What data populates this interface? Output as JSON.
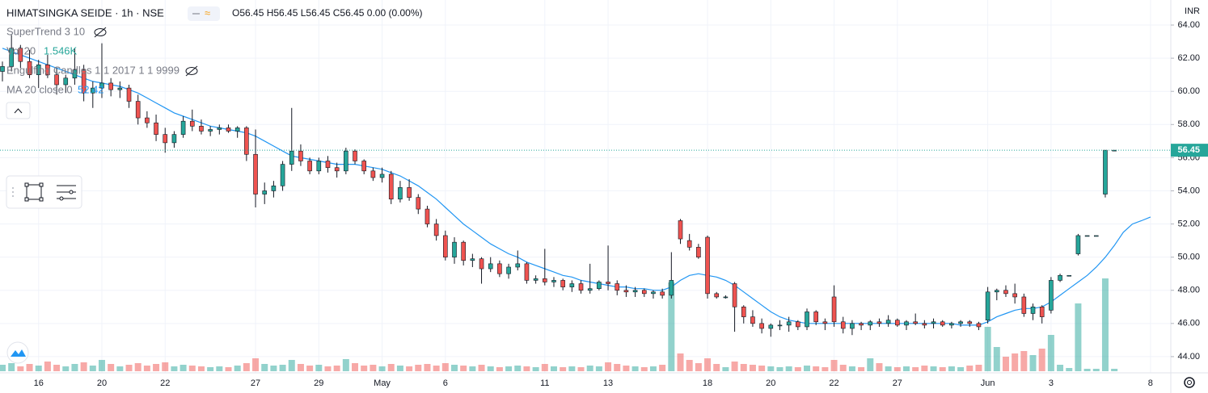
{
  "chart_data": {
    "type": "candlestick",
    "title": "HIMATSINGKA SEIDE · 1h · NSE",
    "ohlc_text": "O56.45 H56.45 L56.45 C56.45 0.00 (0.00%)",
    "currency": "INR",
    "indicators": [
      {
        "name": "SuperTrend 3 10"
      },
      {
        "name": "Vol 20",
        "value": "1.546K"
      },
      {
        "name": "Engulfing Candles 1 1 2017 1 1 9999"
      },
      {
        "name": "MA 20 close 0",
        "value": "52.42"
      }
    ],
    "up_color": "#26a69a",
    "down_color": "#ef5350",
    "volume_up_color": "rgba(38,166,154,0.5)",
    "volume_down_color": "rgba(239,83,80,0.5)",
    "ma_color": "#2196f3",
    "grid": true,
    "ylim": [
      43.12,
      65.51
    ],
    "yticks": [
      {
        "value": 44,
        "label": "44.00"
      },
      {
        "value": 46,
        "label": "46.00"
      },
      {
        "value": 48,
        "label": "48.00"
      },
      {
        "value": 50,
        "label": "50.00"
      },
      {
        "value": 52,
        "label": "52.00"
      },
      {
        "value": 54,
        "label": "54.00"
      },
      {
        "value": 56,
        "label": "56.00"
      },
      {
        "value": 58,
        "label": "58.00"
      },
      {
        "value": 60,
        "label": "60.00"
      },
      {
        "value": 62,
        "label": "62.00"
      },
      {
        "value": 64,
        "label": "64.00"
      }
    ],
    "last_price": {
      "value": 56.45,
      "label": "56.45"
    },
    "categories": [
      null,
      null,
      null,
      null,
      "16",
      null,
      null,
      null,
      null,
      null,
      null,
      "20",
      null,
      null,
      null,
      null,
      null,
      null,
      "22",
      null,
      null,
      null,
      null,
      null,
      null,
      null,
      null,
      null,
      "27",
      null,
      null,
      null,
      null,
      null,
      null,
      "29",
      null,
      null,
      null,
      null,
      null,
      null,
      "May",
      null,
      null,
      null,
      null,
      null,
      null,
      "6",
      null,
      null,
      null,
      null,
      null,
      null,
      null,
      null,
      null,
      null,
      "11",
      null,
      null,
      null,
      null,
      null,
      null,
      "13",
      null,
      null,
      null,
      null,
      null,
      null,
      null,
      null,
      null,
      null,
      "18",
      null,
      null,
      null,
      null,
      null,
      null,
      "20",
      null,
      null,
      null,
      null,
      null,
      null,
      "22",
      null,
      null,
      null,
      null,
      null,
      null,
      "27",
      null,
      null,
      null,
      null,
      null,
      null,
      null,
      null,
      null,
      "Jun",
      null,
      null,
      null,
      null,
      null,
      null,
      "3",
      null,
      null,
      null,
      null,
      null,
      null,
      null,
      null,
      null,
      null,
      "8"
    ],
    "candles": [
      [
        61.2,
        61.8,
        60.6,
        61.5,
        8
      ],
      [
        61.5,
        63.4,
        61.2,
        62.6,
        10
      ],
      [
        62.6,
        62.8,
        61.4,
        61.8,
        6
      ],
      [
        61.8,
        62.5,
        60.8,
        61.0,
        9
      ],
      [
        61.0,
        61.9,
        60.2,
        61.6,
        7
      ],
      [
        61.6,
        62.2,
        60.8,
        61.0,
        12
      ],
      [
        61.0,
        61.4,
        59.8,
        60.4,
        8
      ],
      [
        60.4,
        61.0,
        59.9,
        60.8,
        6
      ],
      [
        60.8,
        62.6,
        60.4,
        61.3,
        9
      ],
      [
        61.3,
        61.6,
        59.4,
        59.9,
        11
      ],
      [
        59.9,
        60.6,
        59.0,
        60.2,
        7
      ],
      [
        60.2,
        62.9,
        59.6,
        60.5,
        14
      ],
      [
        60.5,
        60.8,
        59.7,
        60.1,
        9
      ],
      [
        60.1,
        60.6,
        59.6,
        60.2,
        6
      ],
      [
        60.2,
        60.4,
        59.0,
        59.4,
        8
      ],
      [
        59.4,
        59.8,
        58.0,
        58.4,
        10
      ],
      [
        58.4,
        58.8,
        57.8,
        58.1,
        7
      ],
      [
        58.1,
        58.6,
        57.0,
        57.4,
        9
      ],
      [
        57.4,
        57.8,
        56.3,
        56.9,
        11
      ],
      [
        56.9,
        57.6,
        56.6,
        57.4,
        6
      ],
      [
        57.4,
        58.5,
        57.2,
        58.2,
        8
      ],
      [
        58.2,
        58.9,
        57.6,
        57.9,
        7
      ],
      [
        57.9,
        58.3,
        57.4,
        57.6,
        6
      ],
      [
        57.6,
        57.9,
        57.3,
        57.7,
        5
      ],
      [
        57.7,
        58.0,
        57.4,
        57.8,
        6
      ],
      [
        57.8,
        58.0,
        57.5,
        57.6,
        5
      ],
      [
        57.6,
        57.9,
        57.2,
        57.8,
        7
      ],
      [
        57.8,
        57.9,
        55.8,
        56.2,
        10
      ],
      [
        56.2,
        57.7,
        53.0,
        53.8,
        16
      ],
      [
        53.8,
        54.5,
        53.2,
        54.0,
        9
      ],
      [
        54.0,
        54.6,
        53.6,
        54.3,
        7
      ],
      [
        54.3,
        55.8,
        54.0,
        55.6,
        8
      ],
      [
        55.6,
        59.0,
        55.2,
        56.4,
        14
      ],
      [
        56.4,
        56.8,
        55.5,
        55.8,
        9
      ],
      [
        55.8,
        56.0,
        55.0,
        55.2,
        7
      ],
      [
        55.2,
        56.0,
        55.0,
        55.8,
        8
      ],
      [
        55.8,
        56.1,
        55.1,
        55.4,
        6
      ],
      [
        55.4,
        55.7,
        54.8,
        55.2,
        7
      ],
      [
        55.2,
        56.6,
        55.0,
        56.4,
        15
      ],
      [
        56.4,
        56.5,
        55.6,
        55.8,
        10
      ],
      [
        55.8,
        55.9,
        55.0,
        55.2,
        7
      ],
      [
        55.2,
        55.4,
        54.6,
        54.8,
        8
      ],
      [
        54.8,
        55.4,
        54.5,
        55.0,
        6
      ],
      [
        55.0,
        55.2,
        53.2,
        53.5,
        9
      ],
      [
        53.5,
        54.6,
        53.3,
        54.2,
        7
      ],
      [
        54.2,
        54.7,
        53.4,
        53.6,
        6
      ],
      [
        53.6,
        53.8,
        52.6,
        52.9,
        8
      ],
      [
        52.9,
        53.1,
        51.8,
        52.0,
        9
      ],
      [
        52.0,
        52.3,
        51.0,
        51.3,
        7
      ],
      [
        51.3,
        51.6,
        49.8,
        50.0,
        10
      ],
      [
        50.0,
        51.2,
        49.6,
        50.9,
        8
      ],
      [
        50.9,
        51.0,
        49.5,
        49.8,
        7
      ],
      [
        49.8,
        50.2,
        49.4,
        49.9,
        6
      ],
      [
        49.9,
        50.0,
        48.4,
        49.3,
        8
      ],
      [
        49.3,
        50.0,
        49.1,
        49.6,
        6
      ],
      [
        49.6,
        49.8,
        48.8,
        49.0,
        5
      ],
      [
        49.0,
        49.6,
        48.7,
        49.4,
        6
      ],
      [
        49.4,
        50.4,
        49.2,
        49.6,
        7
      ],
      [
        49.6,
        49.7,
        48.4,
        48.6,
        6
      ],
      [
        48.6,
        48.9,
        48.4,
        48.7,
        5
      ],
      [
        48.7,
        50.5,
        48.3,
        48.5,
        9
      ],
      [
        48.5,
        48.8,
        48.2,
        48.6,
        6
      ],
      [
        48.6,
        48.7,
        48.0,
        48.2,
        5
      ],
      [
        48.2,
        48.6,
        47.9,
        48.4,
        6
      ],
      [
        48.4,
        48.6,
        47.8,
        48.0,
        5
      ],
      [
        48.0,
        49.6,
        47.8,
        48.1,
        7
      ],
      [
        48.1,
        48.6,
        48.0,
        48.5,
        6
      ],
      [
        48.5,
        50.7,
        48.0,
        48.4,
        11
      ],
      [
        48.4,
        48.6,
        47.7,
        48.0,
        9
      ],
      [
        48.0,
        48.3,
        47.6,
        47.9,
        7
      ],
      [
        47.9,
        48.2,
        47.6,
        48.0,
        6
      ],
      [
        48.0,
        48.1,
        47.6,
        47.8,
        5
      ],
      [
        47.8,
        48.0,
        47.5,
        47.9,
        6
      ],
      [
        47.9,
        48.1,
        47.5,
        47.7,
        8
      ],
      [
        47.7,
        50.3,
        47.5,
        48.6,
        110
      ],
      [
        52.2,
        52.3,
        50.8,
        51.1,
        22
      ],
      [
        51.0,
        51.4,
        50.4,
        50.6,
        14
      ],
      [
        50.6,
        50.8,
        49.9,
        50.0,
        10
      ],
      [
        51.2,
        51.3,
        47.5,
        47.8,
        16
      ],
      [
        47.8,
        47.9,
        47.5,
        47.6,
        9
      ],
      [
        47.6,
        47.7,
        47.5,
        47.6,
        5
      ],
      [
        48.4,
        48.5,
        45.5,
        47.0,
        12
      ],
      [
        47.0,
        47.1,
        46.0,
        46.4,
        9
      ],
      [
        46.4,
        46.8,
        45.8,
        46.0,
        8
      ],
      [
        46.0,
        46.3,
        45.4,
        45.7,
        7
      ],
      [
        45.7,
        46.0,
        45.2,
        45.9,
        6
      ],
      [
        45.9,
        46.2,
        45.6,
        45.9,
        5
      ],
      [
        45.9,
        46.4,
        45.5,
        46.1,
        6
      ],
      [
        46.1,
        46.2,
        45.6,
        45.8,
        5
      ],
      [
        45.8,
        46.9,
        45.6,
        46.7,
        7
      ],
      [
        46.7,
        46.8,
        45.9,
        46.1,
        6
      ],
      [
        46.1,
        46.3,
        45.6,
        46.0,
        5
      ],
      [
        47.6,
        48.3,
        45.8,
        46.1,
        14
      ],
      [
        46.1,
        46.4,
        45.4,
        45.7,
        8
      ],
      [
        45.7,
        46.2,
        45.3,
        46.0,
        6
      ],
      [
        46.0,
        46.1,
        45.6,
        45.9,
        5
      ],
      [
        45.9,
        46.2,
        45.6,
        46.1,
        16
      ],
      [
        46.1,
        46.3,
        45.8,
        46.0,
        10
      ],
      [
        46.0,
        46.5,
        45.8,
        46.2,
        6
      ],
      [
        46.2,
        46.3,
        45.8,
        45.9,
        5
      ],
      [
        45.9,
        46.2,
        45.6,
        46.1,
        6
      ],
      [
        46.1,
        46.6,
        45.9,
        46.0,
        5
      ],
      [
        46.0,
        46.2,
        45.7,
        45.9,
        7
      ],
      [
        46.0,
        46.3,
        45.7,
        46.1,
        6
      ],
      [
        46.1,
        46.2,
        45.8,
        45.9,
        5
      ],
      [
        45.9,
        46.1,
        45.7,
        46.0,
        6
      ],
      [
        46.0,
        46.2,
        45.8,
        46.1,
        5
      ],
      [
        46.1,
        46.2,
        45.8,
        46.0,
        7
      ],
      [
        46.0,
        46.1,
        45.6,
        45.8,
        8
      ],
      [
        46.2,
        48.2,
        46.0,
        47.9,
        55
      ],
      [
        47.9,
        48.1,
        47.4,
        48.0,
        30
      ],
      [
        48.0,
        48.3,
        47.6,
        47.8,
        18
      ],
      [
        47.8,
        48.4,
        47.2,
        47.6,
        22
      ],
      [
        47.6,
        47.8,
        46.4,
        46.6,
        25
      ],
      [
        46.6,
        47.2,
        46.2,
        47.0,
        20
      ],
      [
        47.0,
        47.1,
        46.0,
        46.4,
        28
      ],
      [
        46.8,
        48.8,
        46.6,
        48.6,
        45
      ],
      [
        48.6,
        49.0,
        48.5,
        48.9,
        8
      ],
      [
        48.9,
        48.9,
        48.9,
        48.9,
        4
      ],
      [
        50.2,
        51.4,
        50.1,
        51.3,
        84
      ],
      [
        51.3,
        51.3,
        51.3,
        51.3,
        3
      ],
      [
        51.3,
        51.3,
        51.3,
        51.3,
        3
      ],
      [
        53.8,
        56.45,
        53.6,
        56.45,
        115
      ],
      [
        56.45,
        56.45,
        56.45,
        56.45,
        3
      ],
      null,
      null,
      null,
      null
    ],
    "ma": [
      62.6,
      62.4,
      62.2,
      62.0,
      61.8,
      61.6,
      61.4,
      61.2,
      61.0,
      60.8,
      60.6,
      60.5,
      60.4,
      60.3,
      60.1,
      59.9,
      59.6,
      59.3,
      59.0,
      58.7,
      58.5,
      58.3,
      58.1,
      57.9,
      57.8,
      57.7,
      57.6,
      57.5,
      57.3,
      57.0,
      56.7,
      56.4,
      56.1,
      56.0,
      55.9,
      55.8,
      55.7,
      55.6,
      55.6,
      55.6,
      55.5,
      55.4,
      55.3,
      55.1,
      54.9,
      54.6,
      54.3,
      53.9,
      53.5,
      53.0,
      52.5,
      52.0,
      51.6,
      51.2,
      50.8,
      50.5,
      50.2,
      50.0,
      49.7,
      49.5,
      49.3,
      49.1,
      48.9,
      48.8,
      48.6,
      48.5,
      48.4,
      48.3,
      48.2,
      48.2,
      48.1,
      48.1,
      48.0,
      48.0,
      48.2,
      48.6,
      48.9,
      49.0,
      48.9,
      48.8,
      48.6,
      48.3,
      47.9,
      47.5,
      47.1,
      46.7,
      46.4,
      46.2,
      46.1,
      46.0,
      46.0,
      46.0,
      46.0,
      46.0,
      46.0,
      46.0,
      46.0,
      46.0,
      46.0,
      46.0,
      46.0,
      46.0,
      46.0,
      46.0,
      46.0,
      46.0,
      45.9,
      45.9,
      45.9,
      46.1,
      46.4,
      46.6,
      46.8,
      46.9,
      46.9,
      47.0,
      47.3,
      47.7,
      48.1,
      48.5,
      48.9,
      49.4,
      50.0,
      50.7,
      51.5,
      52.0,
      52.2,
      52.42
    ]
  }
}
